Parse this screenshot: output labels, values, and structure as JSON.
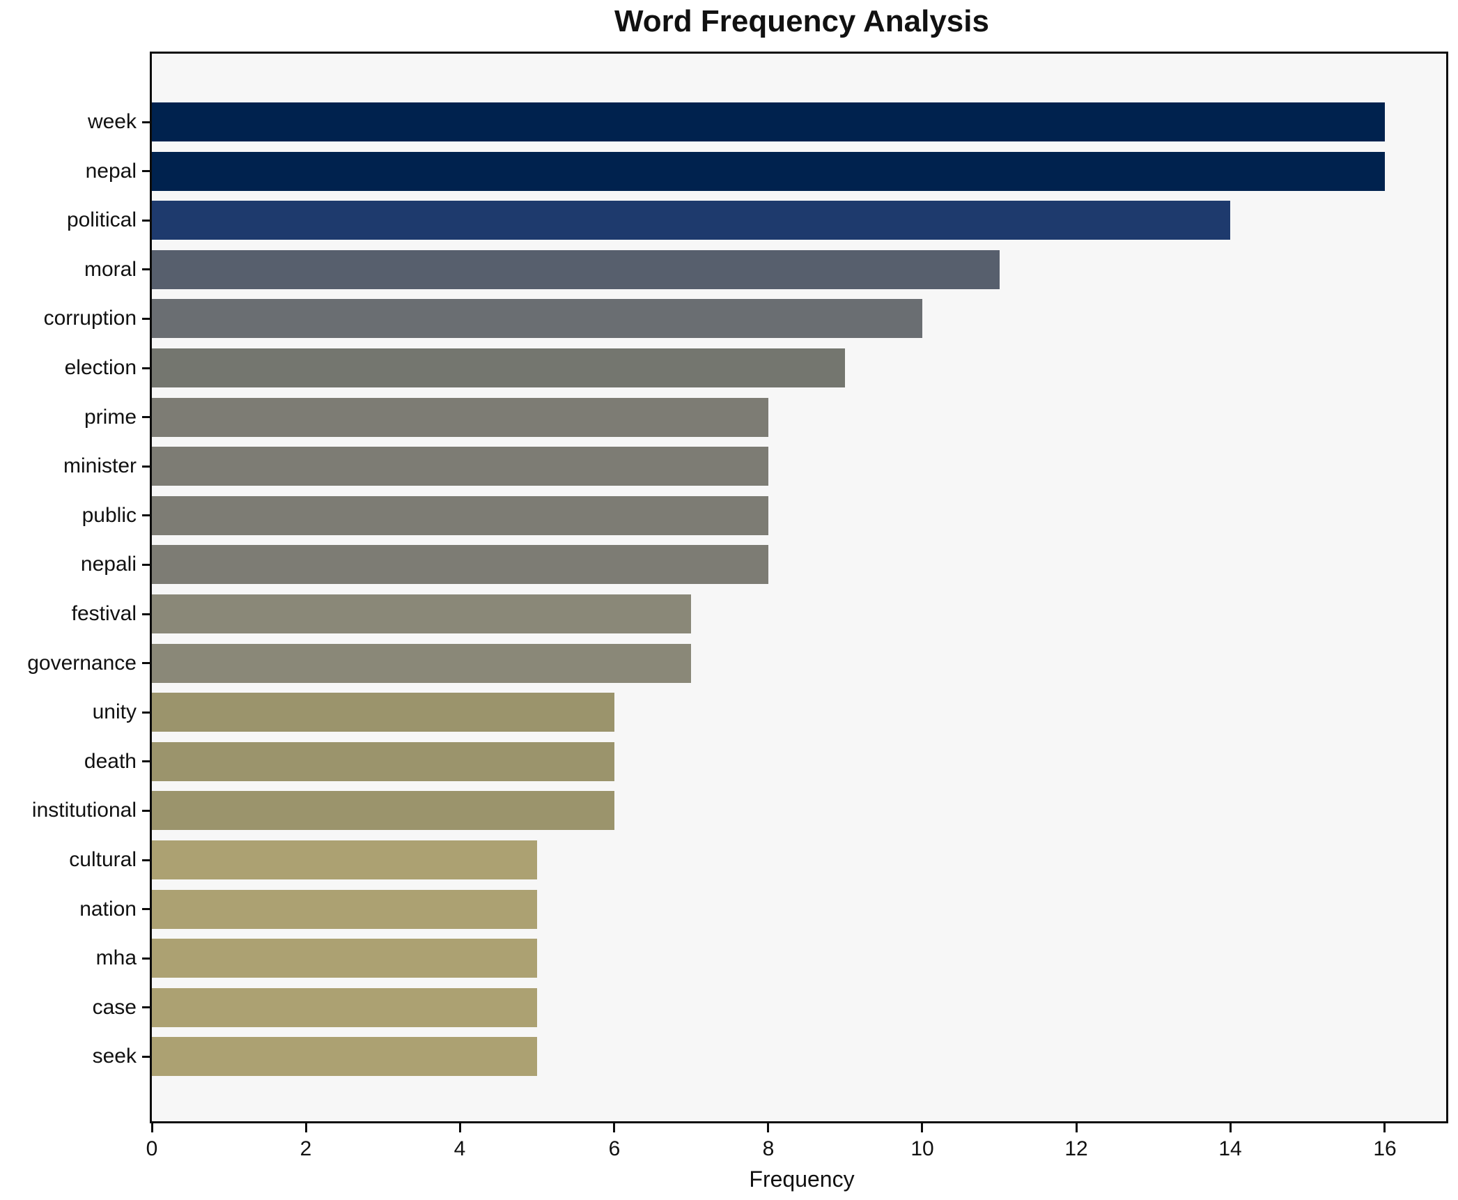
{
  "chart_data": {
    "type": "bar",
    "orientation": "horizontal",
    "title": "Word Frequency Analysis",
    "xlabel": "Frequency",
    "ylabel": "",
    "grid": false,
    "legend": false,
    "xlim": [
      0,
      16.8
    ],
    "x_ticks": [
      0,
      2,
      4,
      6,
      8,
      10,
      12,
      14,
      16
    ],
    "categories": [
      "week",
      "nepal",
      "political",
      "moral",
      "corruption",
      "election",
      "prime",
      "minister",
      "public",
      "nepali",
      "festival",
      "governance",
      "unity",
      "death",
      "institutional",
      "cultural",
      "nation",
      "mha",
      "case",
      "seek"
    ],
    "values": [
      16,
      16,
      14,
      11,
      10,
      9,
      8,
      8,
      8,
      8,
      7,
      7,
      6,
      6,
      6,
      5,
      5,
      5,
      5,
      5
    ],
    "bar_colors": [
      "#00224e",
      "#00224e",
      "#1e3a6d",
      "#575f6d",
      "#6a6e72",
      "#74766f",
      "#7d7c74",
      "#7d7c74",
      "#7d7c74",
      "#7d7c74",
      "#8a8878",
      "#8a8878",
      "#9b946c",
      "#9b946c",
      "#9b946c",
      "#aca172",
      "#aca172",
      "#aca172",
      "#aca172",
      "#aca172"
    ],
    "colors": {
      "plot_background": "#f7f7f7",
      "figure_background": "#ffffff",
      "spine": "#0c0c0c",
      "text": "#111111"
    }
  }
}
